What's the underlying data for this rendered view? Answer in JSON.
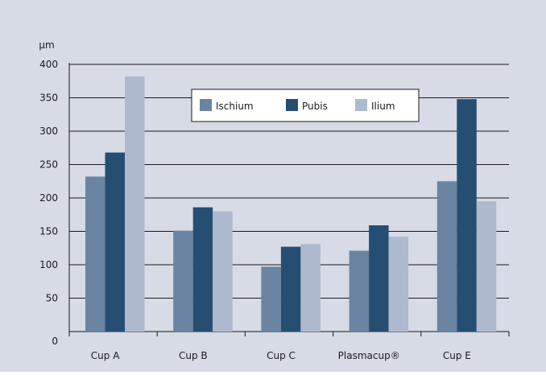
{
  "chart_data": {
    "type": "bar",
    "title": "",
    "ylabel": "µm",
    "xlabel": "",
    "categories": [
      "Cup A",
      "Cup B",
      "Cup C",
      "Plasmacup®",
      "Cup E"
    ],
    "series": [
      {
        "name": "Ischium",
        "color": "#6b84a1",
        "values": [
          232,
          151,
          97,
          121,
          225
        ]
      },
      {
        "name": "Pubis",
        "color": "#264e72",
        "values": [
          268,
          186,
          127,
          159,
          348
        ]
      },
      {
        "name": "Ilium",
        "color": "#aeb9cd",
        "values": [
          382,
          180,
          131,
          142,
          195
        ]
      }
    ],
    "yticks": [
      0,
      50,
      100,
      150,
      200,
      250,
      300,
      350,
      400
    ],
    "ylim": [
      0,
      410
    ],
    "grid": true,
    "legend_position": "top-center",
    "background_color": "#d6dbe6",
    "grid_color": "#1a1a1a"
  }
}
